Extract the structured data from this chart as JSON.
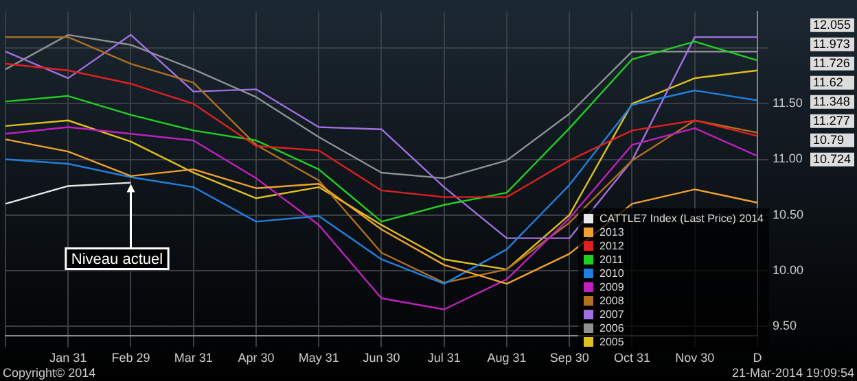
{
  "chart_data": {
    "type": "line",
    "categories": [
      null,
      "Jan 31",
      "Feb 29",
      "Mar 31",
      "Apr 30",
      "May 31",
      "Jun 30",
      "Jul 31",
      "Aug 31",
      "Sep 30",
      "Oct 31",
      "Nov 30",
      "D"
    ],
    "series": [
      {
        "name": "CATTLE7 Index (Last Price) 2014",
        "color": "#e8e8e8",
        "values": [
          10.6,
          10.76,
          10.79,
          null,
          null,
          null,
          null,
          null,
          null,
          null,
          null,
          null,
          null
        ]
      },
      {
        "name": "2013",
        "color": "#f0a030",
        "values": [
          11.18,
          11.07,
          10.85,
          10.91,
          10.74,
          10.78,
          10.37,
          10.05,
          9.88,
          10.15,
          10.6,
          10.73,
          10.61
        ]
      },
      {
        "name": "2012",
        "color": "#e02020",
        "values": [
          11.86,
          11.8,
          11.68,
          11.5,
          11.12,
          11.08,
          10.72,
          10.66,
          10.66,
          10.99,
          11.26,
          11.35,
          11.21
        ]
      },
      {
        "name": "2011",
        "color": "#20d020",
        "values": [
          11.52,
          11.57,
          11.4,
          11.26,
          11.17,
          10.91,
          10.44,
          10.59,
          10.7,
          11.28,
          11.9,
          12.06,
          11.89
        ]
      },
      {
        "name": "2010",
        "color": "#2080e0",
        "values": [
          11.0,
          10.96,
          10.84,
          10.75,
          10.44,
          10.49,
          10.1,
          9.88,
          10.19,
          10.77,
          11.49,
          11.62,
          11.53
        ]
      },
      {
        "name": "2009",
        "color": "#c020c0",
        "values": [
          11.23,
          11.29,
          11.23,
          11.17,
          10.83,
          10.41,
          9.75,
          9.65,
          9.92,
          10.47,
          11.13,
          11.28,
          11.03
        ]
      },
      {
        "name": "2008",
        "color": "#b07020",
        "values": [
          12.1,
          12.1,
          11.86,
          11.69,
          11.13,
          10.81,
          10.16,
          9.89,
          10.01,
          10.43,
          10.99,
          11.35,
          11.24
        ]
      },
      {
        "name": "2007",
        "color": "#a070e0",
        "values": [
          11.97,
          11.73,
          12.12,
          11.61,
          11.63,
          11.29,
          11.27,
          10.75,
          10.29,
          10.29,
          10.99,
          12.1,
          12.1
        ]
      },
      {
        "name": "2006",
        "color": "#909090",
        "values": [
          11.81,
          12.12,
          12.03,
          11.81,
          11.56,
          11.2,
          10.88,
          10.83,
          10.99,
          11.41,
          11.97,
          11.97,
          11.97
        ]
      },
      {
        "name": "2005",
        "color": "#e0c020",
        "values": [
          11.3,
          11.35,
          11.16,
          10.88,
          10.65,
          10.75,
          10.41,
          10.1,
          10.01,
          10.5,
          11.5,
          11.73,
          11.8
        ]
      }
    ],
    "ylim": [
      9.41,
      12.33
    ],
    "yticks": [
      {
        "value": 9.5,
        "label": "9.50"
      },
      {
        "value": 10,
        "label": "10.00"
      },
      {
        "value": 10.5,
        "label": "10.50"
      },
      {
        "value": 11,
        "label": "11.00"
      },
      {
        "value": 11.5,
        "label": "11.50"
      },
      {
        "value": 12,
        "label": null
      }
    ],
    "grid": true,
    "legend": "bottom right",
    "marker": "none",
    "line_style": "solid",
    "annotations": [
      {
        "text": "Niveau actuel",
        "x": "Feb 29",
        "y": 10.79
      },
      "12.055",
      "11.973",
      "11.726",
      "11.62",
      "11.348",
      "11.277",
      "10.79",
      "10.724",
      "Copyright© 2014",
      "21-Mar-2014 19:09:54"
    ]
  }
}
